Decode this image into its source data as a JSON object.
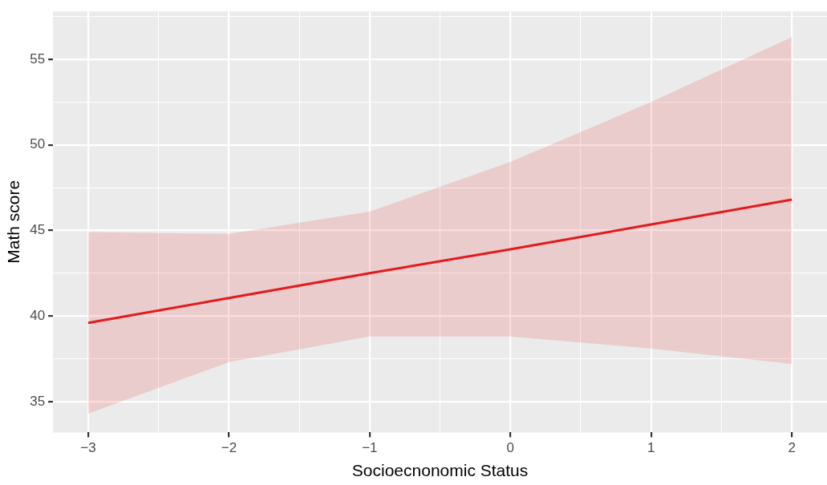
{
  "chart_data": {
    "type": "line",
    "xlabel": "Socioecnonomic Status",
    "ylabel": "Math score",
    "x": [
      -3,
      -2,
      -1,
      0,
      1,
      2
    ],
    "series": [
      {
        "color": "#e41a1c",
        "values": [
          39.6,
          41.05,
          42.5,
          43.9,
          45.35,
          46.8
        ],
        "lower": [
          34.3,
          37.3,
          38.8,
          38.8,
          38.1,
          37.2
        ],
        "upper": [
          44.9,
          44.8,
          46.1,
          49.0,
          52.5,
          56.3
        ]
      }
    ],
    "xlim": [
      -3.25,
      2.25
    ],
    "ylim": [
      33.2,
      57.8
    ],
    "xticks": [
      -3,
      {
        "value": -2.5,
        "label": null
      },
      -2,
      {
        "value": -1.5,
        "label": null
      },
      -1,
      {
        "value": -0.5,
        "label": null
      },
      0,
      {
        "value": 0.5,
        "label": null
      },
      1,
      {
        "value": 1.5,
        "label": null
      },
      2
    ],
    "yticks": [
      35,
      {
        "value": 37.5,
        "label": null
      },
      40,
      {
        "value": 42.5,
        "label": null
      },
      45,
      {
        "value": 47.5,
        "label": null
      },
      50,
      {
        "value": 52.5,
        "label": null
      },
      55,
      {
        "value": 57.5,
        "label": null
      }
    ],
    "grid": true,
    "legend": false,
    "marker": "none",
    "line_style": "solid"
  }
}
